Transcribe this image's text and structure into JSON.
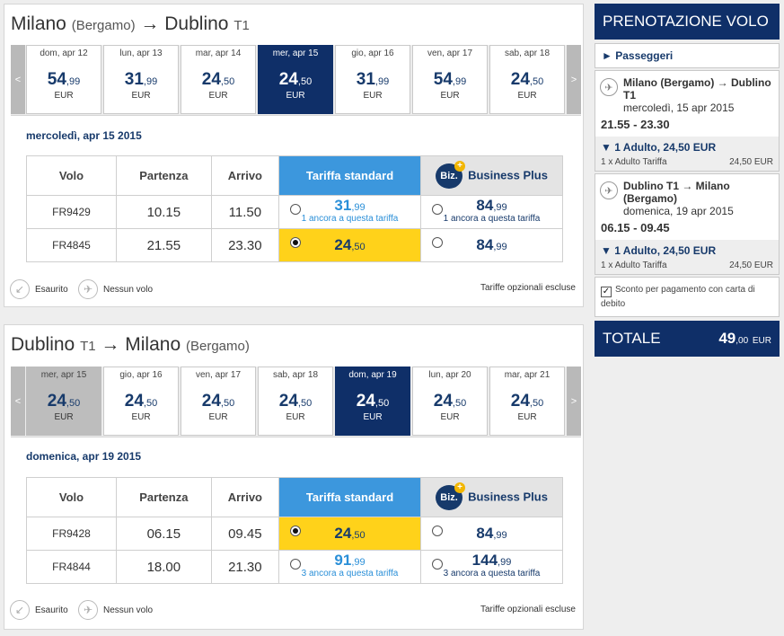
{
  "outbound": {
    "title_from": "Milano",
    "title_from_sub": "(Bergamo)",
    "title_arrow": "→",
    "title_to": "Dublino",
    "title_to_sub": "T1",
    "dates": [
      {
        "name": "dom, apr 12",
        "int": "54",
        "dec": ",99",
        "cur": "EUR",
        "state": ""
      },
      {
        "name": "lun, apr 13",
        "int": "31",
        "dec": ",99",
        "cur": "EUR",
        "state": ""
      },
      {
        "name": "mar, apr 14",
        "int": "24",
        "dec": ",50",
        "cur": "EUR",
        "state": ""
      },
      {
        "name": "mer, apr 15",
        "int": "24",
        "dec": ",50",
        "cur": "EUR",
        "state": "selected"
      },
      {
        "name": "gio, apr 16",
        "int": "31",
        "dec": ",99",
        "cur": "EUR",
        "state": ""
      },
      {
        "name": "ven, apr 17",
        "int": "54",
        "dec": ",99",
        "cur": "EUR",
        "state": ""
      },
      {
        "name": "sab, apr 18",
        "int": "24",
        "dec": ",50",
        "cur": "EUR",
        "state": ""
      }
    ],
    "day_label": "mercoledì, apr 15 2015",
    "rows": [
      {
        "flight": "FR9429",
        "dep": "10.15",
        "arr": "11.50",
        "std": {
          "int": "31",
          "dec": ",99",
          "note": "1 ancora a questa tariffa",
          "selected": false
        },
        "biz": {
          "int": "84",
          "dec": ",99",
          "note": "1 ancora a questa tariffa",
          "selected": false
        }
      },
      {
        "flight": "FR4845",
        "dep": "21.55",
        "arr": "23.30",
        "std": {
          "int": "24",
          "dec": ",50",
          "note": "",
          "selected": true
        },
        "biz": {
          "int": "84",
          "dec": ",99",
          "note": "",
          "selected": false
        }
      }
    ]
  },
  "inbound": {
    "title_from": "Dublino",
    "title_from_sub": "T1",
    "title_arrow": "→",
    "title_to": "Milano",
    "title_to_sub": "(Bergamo)",
    "dates": [
      {
        "name": "mer, apr 15",
        "int": "24",
        "dec": ",50",
        "cur": "EUR",
        "state": "past"
      },
      {
        "name": "gio, apr 16",
        "int": "24",
        "dec": ",50",
        "cur": "EUR",
        "state": ""
      },
      {
        "name": "ven, apr 17",
        "int": "24",
        "dec": ",50",
        "cur": "EUR",
        "state": ""
      },
      {
        "name": "sab, apr 18",
        "int": "24",
        "dec": ",50",
        "cur": "EUR",
        "state": ""
      },
      {
        "name": "dom, apr 19",
        "int": "24",
        "dec": ",50",
        "cur": "EUR",
        "state": "selected"
      },
      {
        "name": "lun, apr 20",
        "int": "24",
        "dec": ",50",
        "cur": "EUR",
        "state": ""
      },
      {
        "name": "mar, apr 21",
        "int": "24",
        "dec": ",50",
        "cur": "EUR",
        "state": ""
      }
    ],
    "day_label": "domenica, apr 19 2015",
    "rows": [
      {
        "flight": "FR9428",
        "dep": "06.15",
        "arr": "09.45",
        "std": {
          "int": "24",
          "dec": ",50",
          "note": "",
          "selected": true
        },
        "biz": {
          "int": "84",
          "dec": ",99",
          "note": "",
          "selected": false
        }
      },
      {
        "flight": "FR4844",
        "dep": "18.00",
        "arr": "21.30",
        "std": {
          "int": "91",
          "dec": ",99",
          "note": "3 ancora a questa tariffa",
          "selected": false
        },
        "biz": {
          "int": "144",
          "dec": ",99",
          "note": "3 ancora a questa tariffa",
          "selected": false
        }
      }
    ]
  },
  "table_headers": {
    "flight": "Volo",
    "departure": "Partenza",
    "arrival": "Arrivo",
    "standard": "Tariffa standard",
    "business": "Business Plus",
    "biz_logo": "Biz.",
    "biz_plus": "+"
  },
  "nav": {
    "prev": "<",
    "next": ">"
  },
  "legend": {
    "soldout": "Esaurito",
    "noflight": "Nessun volo",
    "optional": "Tariffe opzionali escluse"
  },
  "sidebar": {
    "title": "PRENOTAZIONE VOLO",
    "passengers": "► Passeggeri",
    "out_route": "Milano (Bergamo) → Dublino T1",
    "out_date": "mercoledì, 15 apr 2015",
    "out_times": "21.55 - 23.30",
    "out_adult_title": "▼ 1 Adulto, 24,50 EUR",
    "out_adult_label": "1 x Adulto Tariffa",
    "out_adult_price": "24,50 EUR",
    "ret_route": "Dublino T1 → Milano (Bergamo)",
    "ret_date": "domenica, 19 apr 2015",
    "ret_times": "06.15 - 09.45",
    "ret_adult_title": "▼ 1 Adulto, 24,50 EUR",
    "ret_adult_label": "1 x Adulto Tariffa",
    "ret_adult_price": "24,50 EUR",
    "discount": "Sconto per pagamento con carta di debito",
    "discount_checked": true,
    "total_label": "TOTALE",
    "total_int": "49",
    "total_dec": ",00",
    "total_cur": "EUR"
  },
  "colors": {
    "navy": "#0f2f68",
    "std_blue": "#3c97dd",
    "chosen_yellow": "#ffd21a"
  }
}
